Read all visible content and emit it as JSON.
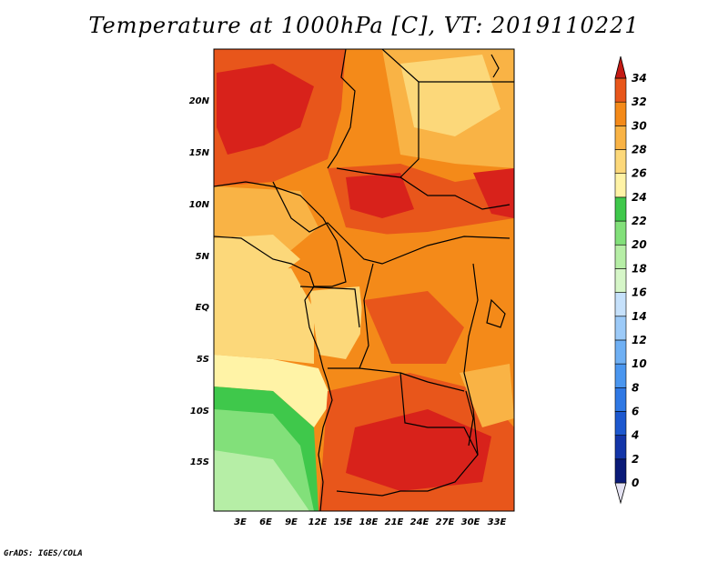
{
  "title": "Temperature at 1000hPa [C], VT: 2019110221",
  "credit": "GrADS: IGES/COLA",
  "map": {
    "lat_labels": [
      "20N",
      "15N",
      "10N",
      "5N",
      "EQ",
      "5S",
      "10S",
      "15S"
    ],
    "lon_labels": [
      "3E",
      "6E",
      "9E",
      "12E",
      "15E",
      "18E",
      "21E",
      "24E",
      "27E",
      "30E",
      "33E"
    ]
  },
  "colorbar": {
    "labels": [
      "0",
      "2",
      "4",
      "6",
      "8",
      "10",
      "12",
      "14",
      "16",
      "18",
      "20",
      "22",
      "24",
      "26",
      "28",
      "30",
      "32",
      "34"
    ],
    "colors": [
      "#0a1a78",
      "#1335a8",
      "#1d58cf",
      "#2f78e4",
      "#4a96ef",
      "#6fb0f4",
      "#9ccaf8",
      "#c6e1fb",
      "#d6f6c8",
      "#b6eea6",
      "#82e07a",
      "#3fc84b",
      "#fff3a6",
      "#fcd87a",
      "#f9b345",
      "#f48a19",
      "#e8561b",
      "#d8221b",
      "#c41a14"
    ]
  },
  "field_colors": {
    "t18": "#b6eea6",
    "t20": "#82e07a",
    "t22": "#3fc84b",
    "t24": "#fff3a6",
    "t26": "#fcd87a",
    "t28": "#f9b345",
    "t30": "#f48a19",
    "t32": "#e8561b",
    "t34": "#d8221b"
  }
}
